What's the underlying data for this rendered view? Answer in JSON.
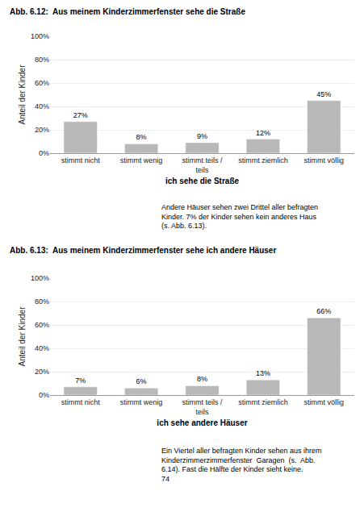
{
  "chart_data": [
    {
      "type": "bar",
      "title": "Abb. 6.12:  Aus meinem Kinderzimmerfenster sehe die Straße",
      "categories": [
        "stimmt nicht",
        "stimmt wenig",
        "stimmt teils /\nteils",
        "stimmt ziemlich",
        "stimmt völlig"
      ],
      "values": [
        27,
        8,
        9,
        12,
        45
      ],
      "value_labels": [
        "27%",
        "8%",
        "9%",
        "12%",
        "45%"
      ],
      "color": "#b8b8b8",
      "xlabel": "ich sehe die Straße",
      "ylabel": "Anteil der Kinder",
      "ylim": [
        0,
        100
      ],
      "yticks": [
        {
          "value": 0,
          "label": "0%"
        },
        {
          "value": 20,
          "label": "20%"
        },
        {
          "value": 40,
          "label": "40%"
        },
        {
          "value": 60,
          "label": "60%"
        },
        {
          "value": 80,
          "label": "80%"
        },
        {
          "value": 100,
          "label": "100%"
        }
      ],
      "grid": true,
      "annotations": [
        "Andere Häuser sehen zwei Drittel aller befragten\nKinder. 7% der Kinder sehen kein anderes Haus\n(s. Abb. 6.13)."
      ]
    },
    {
      "type": "bar",
      "title": "Abb. 6.13:  Aus meinem Kinderzimmerfenster sehe ich andere Häuser",
      "categories": [
        "stimmt nicht",
        "stimmt wenig",
        "stimmt teils /\nteils",
        "stimmt ziemlich",
        "stimmt völlig"
      ],
      "values": [
        7,
        6,
        8,
        13,
        66
      ],
      "value_labels": [
        "7%",
        "6%",
        "8%",
        "13%",
        "66%"
      ],
      "color": "#b8b8b8",
      "xlabel": "ich sehe andere Häuser",
      "ylabel": "Anteil der Kinder",
      "ylim": [
        0,
        100
      ],
      "yticks": [
        {
          "value": 0,
          "label": "0%"
        },
        {
          "value": 20,
          "label": "20%"
        },
        {
          "value": 40,
          "label": "40%"
        },
        {
          "value": 60,
          "label": "60%"
        },
        {
          "value": 80,
          "label": "80%"
        },
        {
          "value": 100,
          "label": "100%"
        }
      ],
      "grid": true,
      "annotations": [
        "Ein Viertel aller befragten Kinder sehen aus ihrem\nKinderzimmerzimmerfenster  Garagen  (s.  Abb.\n6.14). Fast die Hälfte der Kinder sieht keine.\n74"
      ]
    }
  ]
}
